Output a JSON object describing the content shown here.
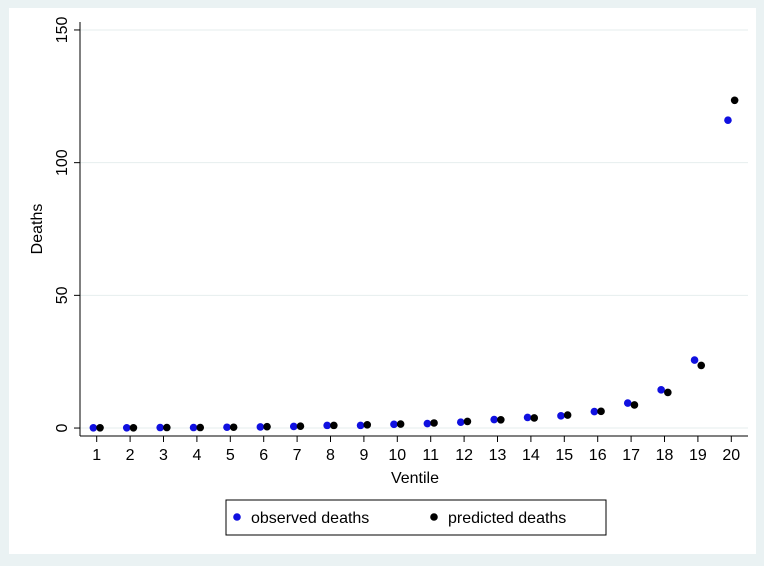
{
  "chart_data": {
    "type": "scatter",
    "title": "",
    "xlabel": "Ventile",
    "ylabel": "Deaths",
    "x": [
      1,
      2,
      3,
      4,
      5,
      6,
      7,
      8,
      9,
      10,
      11,
      12,
      13,
      14,
      15,
      16,
      17,
      18,
      19,
      20
    ],
    "xticks": [
      1,
      2,
      3,
      4,
      5,
      6,
      7,
      8,
      9,
      10,
      11,
      12,
      13,
      14,
      15,
      16,
      17,
      18,
      19,
      20
    ],
    "yticks": [
      0,
      50,
      100,
      150
    ],
    "ylim": [
      -3,
      153
    ],
    "xlim": [
      0.5,
      20.5
    ],
    "grid": "horizontal",
    "legend": "bottom",
    "series": [
      {
        "name": "observed deaths",
        "color": "#1010e0",
        "values": [
          0.1,
          0.1,
          0.2,
          0.2,
          0.3,
          0.4,
          0.6,
          1.0,
          1.0,
          1.4,
          1.7,
          2.2,
          3.2,
          4.0,
          4.6,
          6.2,
          9.4,
          14.4,
          25.6,
          116
        ]
      },
      {
        "name": "predicted deaths",
        "color": "#000000",
        "values": [
          0.1,
          0.1,
          0.2,
          0.2,
          0.3,
          0.5,
          0.7,
          1.0,
          1.2,
          1.5,
          1.9,
          2.5,
          3.1,
          3.8,
          4.9,
          6.3,
          8.7,
          13.4,
          23.6,
          123.5
        ]
      }
    ]
  }
}
